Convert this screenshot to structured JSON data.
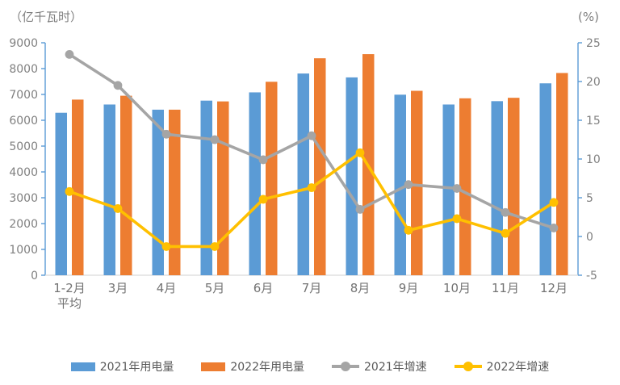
{
  "chart_data": {
    "type": "bar+line combo, dual axis",
    "categories": [
      "1-2月\n平均",
      "3月",
      "4月",
      "5月",
      "6月",
      "7月",
      "8月",
      "9月",
      "10月",
      "11月",
      "12月"
    ],
    "series": [
      {
        "name": "2021年用电量",
        "type": "bar",
        "axis": "left",
        "color": "#5B9BD5",
        "values": [
          6290,
          6610,
          6410,
          6760,
          7080,
          7810,
          7660,
          6990,
          6610,
          6740,
          7430
        ]
      },
      {
        "name": "2022年用电量",
        "type": "bar",
        "axis": "left",
        "color": "#ED7D31",
        "values": [
          6800,
          6950,
          6410,
          6730,
          7490,
          8400,
          8560,
          7140,
          6850,
          6870,
          7830
        ]
      },
      {
        "name": "2021年增速",
        "type": "line",
        "axis": "right",
        "color": "#A5A5A5",
        "values": [
          23.5,
          19.5,
          13.2,
          12.5,
          9.9,
          13.0,
          3.5,
          6.7,
          6.2,
          3.1,
          1.1
        ]
      },
      {
        "name": "2022年增速",
        "type": "line",
        "axis": "right",
        "color": "#FFC000",
        "values": [
          5.8,
          3.6,
          -1.3,
          -1.3,
          4.8,
          6.3,
          10.8,
          0.8,
          2.3,
          0.4,
          4.4
        ]
      }
    ],
    "left_axis": {
      "unit": "（亿千瓦时）",
      "min": 0,
      "max": 9000,
      "step": 1000,
      "ticks": [
        9000,
        8000,
        7000,
        6000,
        5000,
        4000,
        3000,
        2000,
        1000,
        0
      ]
    },
    "right_axis": {
      "unit": "(%)",
      "min": -5,
      "max": 25,
      "step": 5,
      "ticks": [
        25,
        20,
        15,
        10,
        5,
        0,
        -5
      ]
    },
    "legend_position": "bottom",
    "grid": false,
    "colors": {
      "axis_line": "#5B9BD5",
      "baseline": "#D9D9D9",
      "tick_label": "#808080",
      "x_label": "#737373",
      "unit_label": "#7f7f7f"
    }
  }
}
